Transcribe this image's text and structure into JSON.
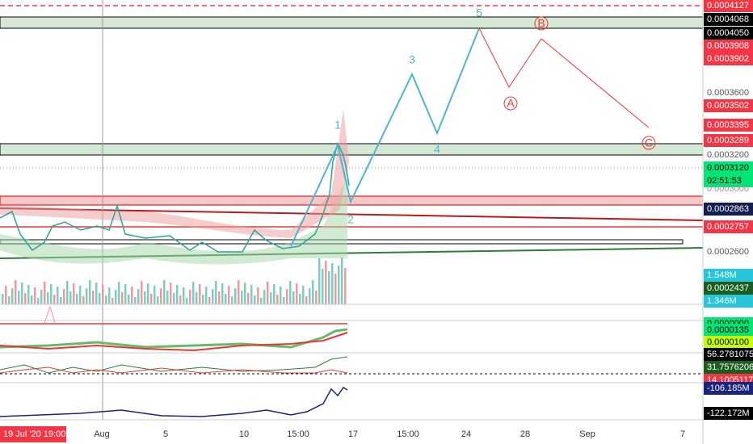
{
  "price_axis": [
    "0.0004127",
    "0.0004068",
    "0.0004050",
    "0.0003908",
    "0.0003902",
    "0.0003600",
    "0.0003502",
    "0.0003395",
    "0.0003289",
    "0.0003200",
    "0.0003120",
    "02:51:53",
    "0.0003000",
    "0.0002863",
    "0.0002757",
    "0.0002600",
    "1.548M",
    "0.0002437",
    "1.346M",
    "0.0000000",
    "0.0000135",
    "0.0000100",
    "56.2781075",
    "31.7576206",
    "14.1005117",
    "-106.185M",
    "-122.172M"
  ],
  "time_axis": [
    "Aug",
    "5",
    "10",
    "15:00",
    "17",
    "15:00",
    "24",
    "28",
    "Sep",
    "7"
  ],
  "start_label": "19 Jul '20  19:00",
  "wave_labels": [
    "5",
    "B",
    "3",
    "A",
    "1",
    "4",
    "C",
    "2"
  ]
}
